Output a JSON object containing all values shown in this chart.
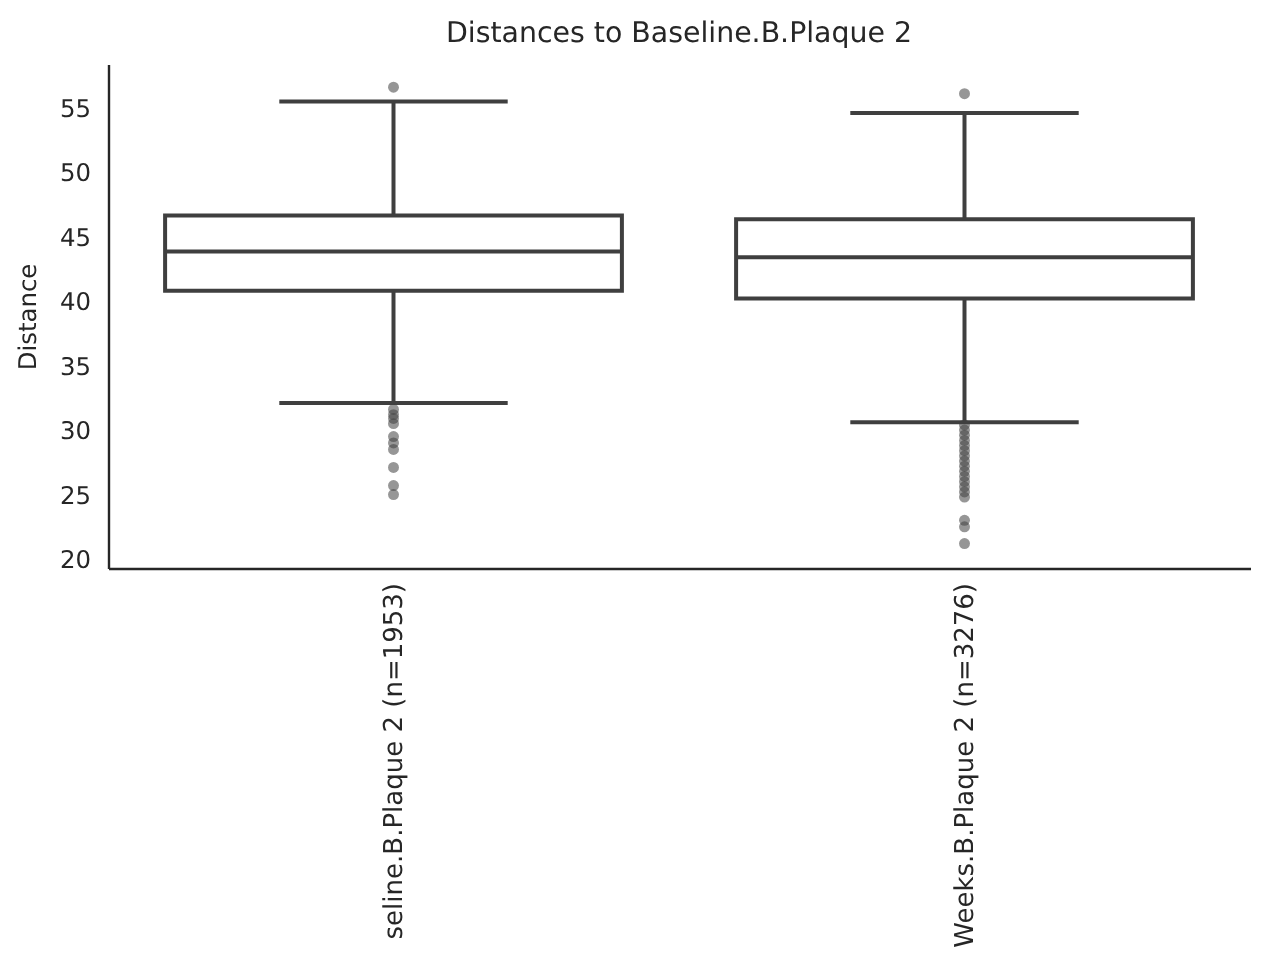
{
  "chart_data": {
    "type": "box",
    "title": "Distances to Baseline.B.Plaque 2",
    "ylabel": "Distance",
    "categories": [
      "seline.B.Plaque 2 (n=1953)",
      "Weeks.B.Plaque 2 (n=3276)"
    ],
    "boxes": [
      {
        "low": 32.1,
        "q1": 40.8,
        "median": 43.85,
        "q3": 46.65,
        "high": 55.5,
        "outliers": [
          56.6,
          31.6,
          31.2,
          30.9,
          30.5,
          29.5,
          29.0,
          28.5,
          27.1,
          25.7,
          25.0
        ]
      },
      {
        "low": 30.6,
        "q1": 40.2,
        "median": 43.4,
        "q3": 46.35,
        "high": 54.6,
        "outliers": [
          56.1,
          30.4,
          30.0,
          29.6,
          29.2,
          28.8,
          28.4,
          28.0,
          27.6,
          27.2,
          26.8,
          26.4,
          26.0,
          25.6,
          25.2,
          24.8,
          23.0,
          22.5,
          21.2
        ]
      }
    ],
    "color": "#3f3f3f",
    "marker": "circle",
    "ylim": [
      19.3,
      58.4
    ],
    "yticks": [
      20,
      25,
      30,
      35,
      40,
      45,
      50,
      55
    ]
  }
}
